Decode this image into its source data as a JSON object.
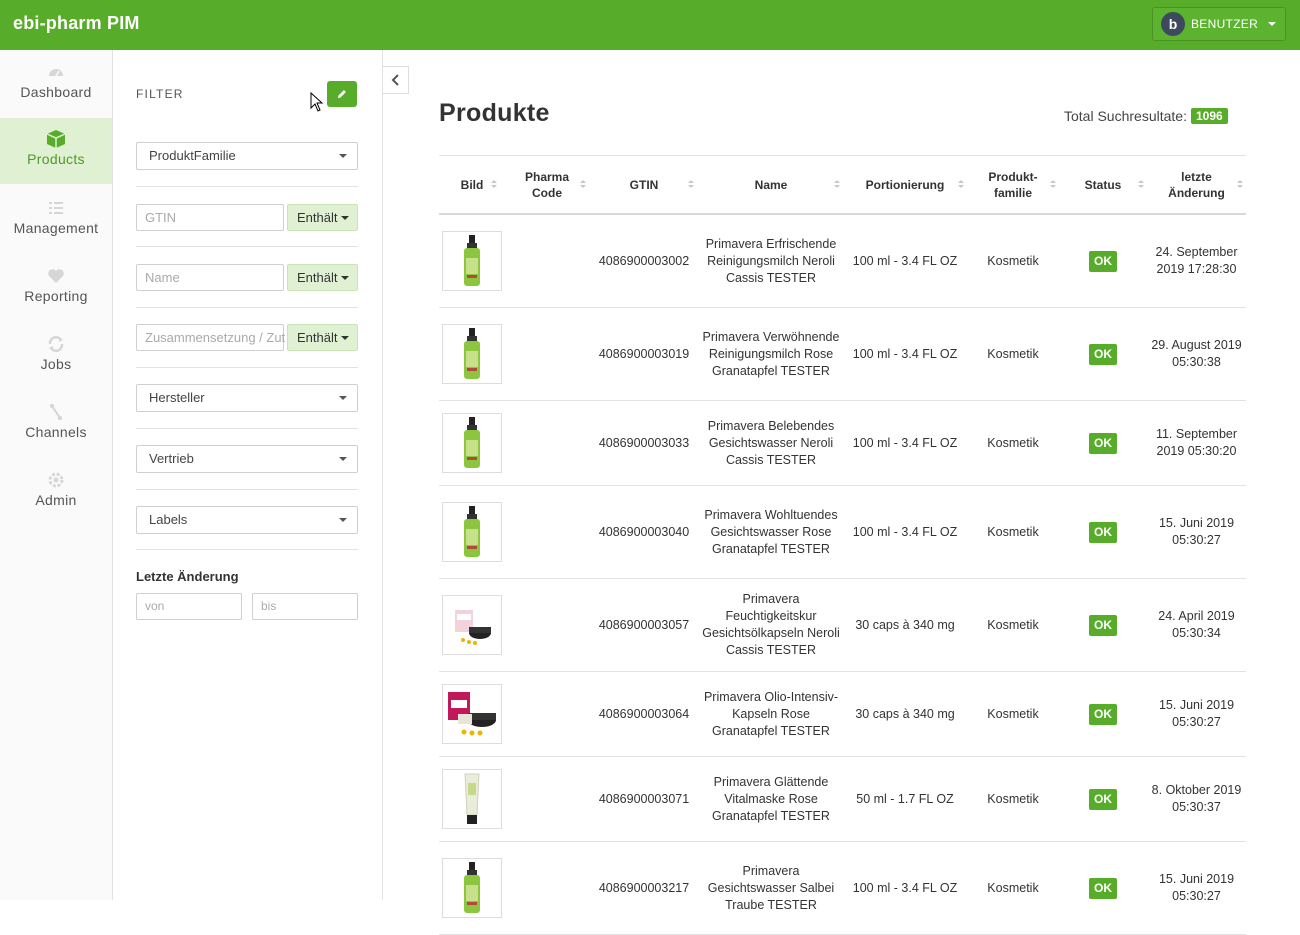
{
  "app": {
    "title": "ebi-pharm PIM",
    "user_label": "BENUTZER"
  },
  "nav": [
    {
      "label": "Dashboard",
      "icon": "dashboard-icon",
      "active": false
    },
    {
      "label": "Products",
      "icon": "box-icon",
      "active": true
    },
    {
      "label": "Management",
      "icon": "list-check-icon",
      "active": false
    },
    {
      "label": "Reporting",
      "icon": "heartbeat-icon",
      "active": false
    },
    {
      "label": "Jobs",
      "icon": "refresh-icon",
      "active": false
    },
    {
      "label": "Channels",
      "icon": "sitemap-icon",
      "active": false
    },
    {
      "label": "Admin",
      "icon": "gear-icon",
      "active": false
    }
  ],
  "filter": {
    "title": "FILTER",
    "produktfamilie": "ProduktFamilie",
    "gtin_placeholder": "GTIN",
    "name_placeholder": "Name",
    "zusammensetzung_placeholder": "Zusammensetzung / Zut",
    "contains_label": "Enthält",
    "hersteller": "Hersteller",
    "vertrieb": "Vertrieb",
    "labels": "Labels",
    "letzte_aenderung": "Letzte Änderung",
    "von_placeholder": "von",
    "bis_placeholder": "bis"
  },
  "main": {
    "title": "Produkte",
    "total_label": "Total Suchresultate:",
    "total_count": "1096"
  },
  "table": {
    "columns": [
      "Bild",
      "Pharma Code",
      "GTIN",
      "Name",
      "Portionierung",
      "Produkt- familie",
      "Status",
      "letzte Änderung"
    ],
    "rows": [
      {
        "image": "spray-bottle",
        "pharma_code": "",
        "gtin": "4086900003002",
        "name": "Primavera Erfrischende Reinigungsmilch Neroli Cassis TESTER",
        "portion": "100 ml - 3.4 FL OZ",
        "family": "Kosmetik",
        "status": "OK",
        "changed": "24. September 2019 17:28:30"
      },
      {
        "image": "spray-bottle",
        "pharma_code": "",
        "gtin": "4086900003019",
        "name": "Primavera Verwöhnende Reinigungsmilch Rose Granatapfel TESTER",
        "portion": "100 ml - 3.4 FL OZ",
        "family": "Kosmetik",
        "status": "OK",
        "changed": "29. August 2019 05:30:38"
      },
      {
        "image": "spray-bottle",
        "pharma_code": "",
        "gtin": "4086900003033",
        "name": "Primavera Belebendes Gesichtswasser Neroli Cassis TESTER",
        "portion": "100 ml - 3.4 FL OZ",
        "family": "Kosmetik",
        "status": "OK",
        "changed": "11. September 2019 05:30:20"
      },
      {
        "image": "spray-bottle",
        "pharma_code": "",
        "gtin": "4086900003040",
        "name": "Primavera Wohltuendes Gesichtswasser Rose Granatapfel TESTER",
        "portion": "100 ml - 3.4 FL OZ",
        "family": "Kosmetik",
        "status": "OK",
        "changed": "15. Juni 2019 05:30:27"
      },
      {
        "image": "jar-capsules",
        "pharma_code": "",
        "gtin": "4086900003057",
        "name": "Primavera Feuchtigkeitskur Gesichtsölkapseln Neroli Cassis TESTER",
        "portion": "30 caps à 340 mg",
        "family": "Kosmetik",
        "status": "OK",
        "changed": "24. April 2019 05:30:34"
      },
      {
        "image": "jar-capsules-red",
        "pharma_code": "",
        "gtin": "4086900003064",
        "name": "Primavera Olio-Intensiv-Kapseln Rose Granatapfel TESTER",
        "portion": "30 caps à 340 mg",
        "family": "Kosmetik",
        "status": "OK",
        "changed": "15. Juni 2019 05:30:27"
      },
      {
        "image": "tube",
        "pharma_code": "",
        "gtin": "4086900003071",
        "name": "Primavera Glättende Vitalmaske Rose Granatapfel TESTER",
        "portion": "50 ml - 1.7 FL OZ",
        "family": "Kosmetik",
        "status": "OK",
        "changed": "8. Oktober 2019 05:30:37"
      },
      {
        "image": "spray-bottle",
        "pharma_code": "",
        "gtin": "4086900003217",
        "name": "Primavera Gesichtswasser Salbei Traube TESTER",
        "portion": "100 ml - 3.4 FL OZ",
        "family": "Kosmetik",
        "status": "OK",
        "changed": "15. Juni 2019 05:30:27"
      }
    ]
  },
  "colors": {
    "brand": "#57ad2a",
    "active_bg": "#dff1d2"
  }
}
